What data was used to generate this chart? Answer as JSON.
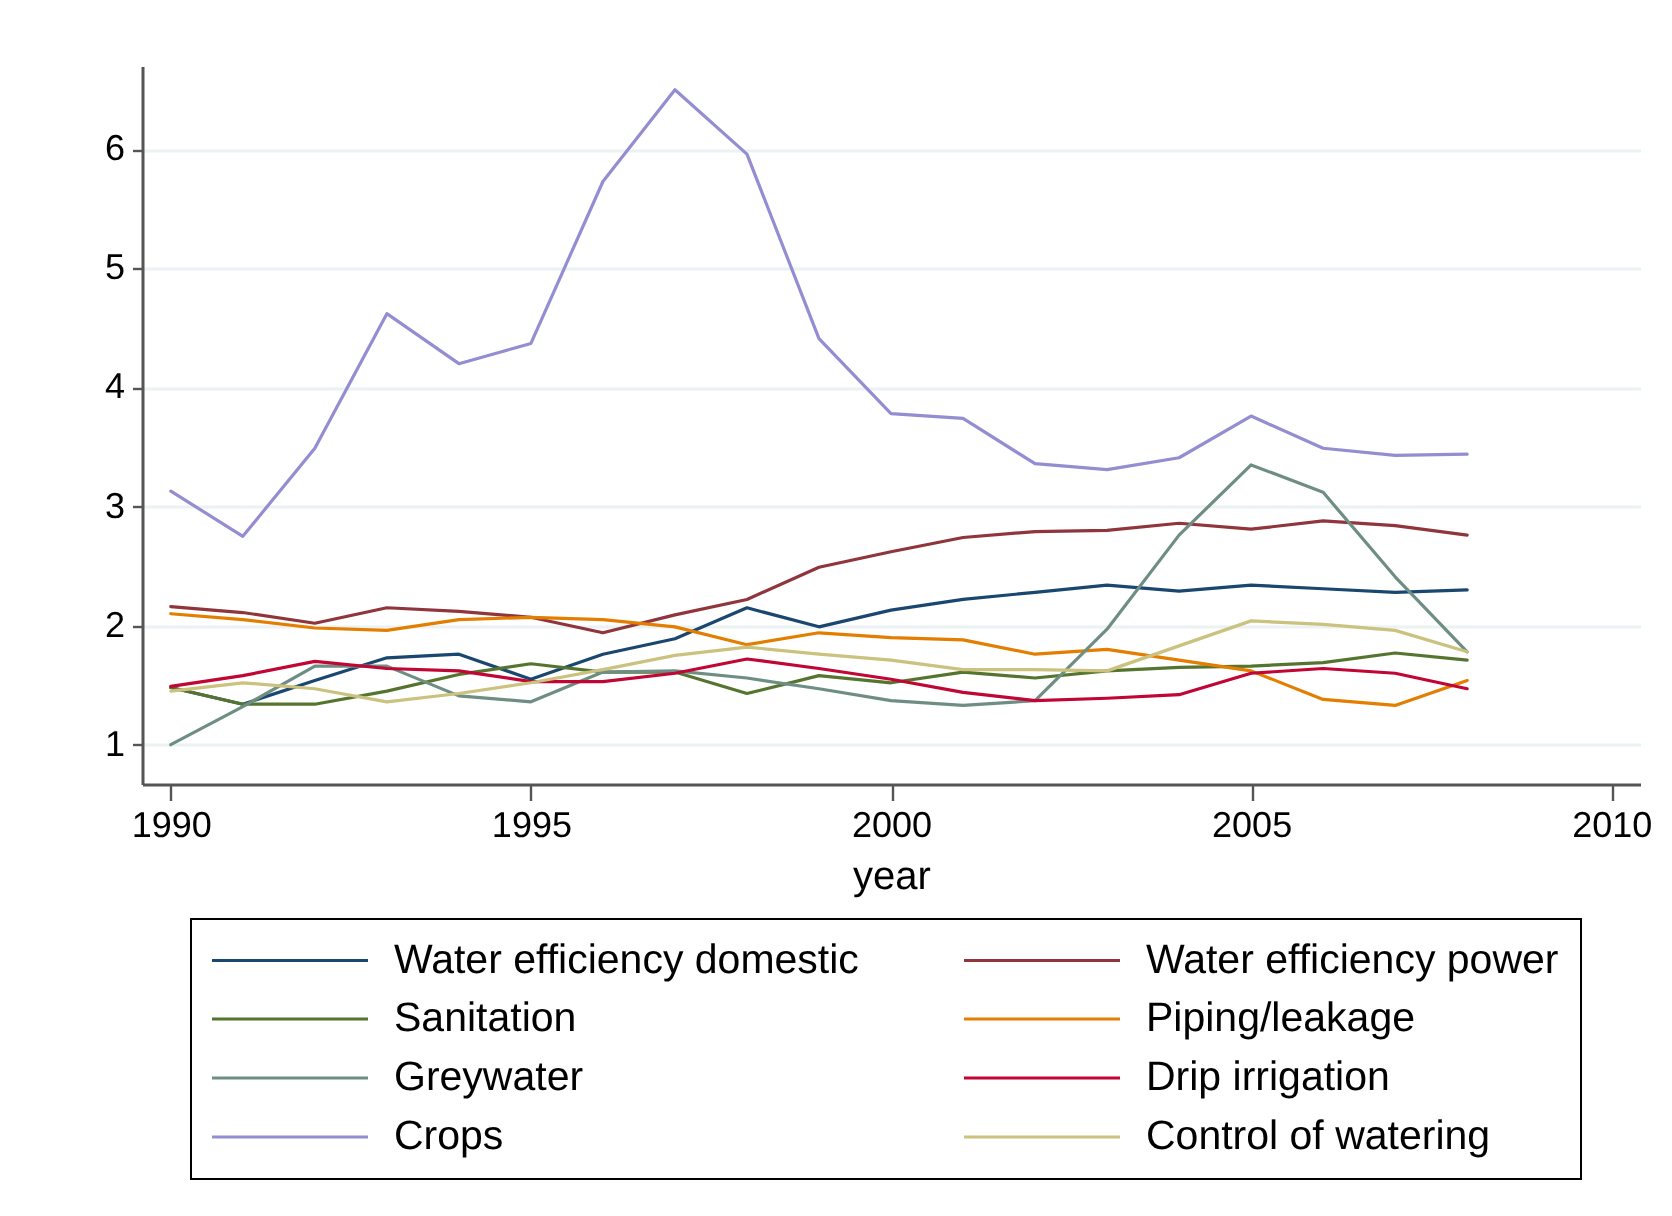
{
  "chart_data": {
    "type": "line",
    "xlabel": "year",
    "x": [
      1990,
      1991,
      1992,
      1993,
      1994,
      1995,
      1996,
      1997,
      1998,
      1999,
      2000,
      2001,
      2002,
      2003,
      2004,
      2005,
      2006,
      2007,
      2008
    ],
    "series": [
      {
        "name": "Water efficiency domestic",
        "color": "#1a476f",
        "values": [
          1.48,
          1.34,
          1.54,
          1.73,
          1.76,
          1.55,
          1.76,
          1.89,
          2.15,
          1.99,
          2.13,
          2.22,
          2.28,
          2.34,
          2.29,
          2.34,
          2.31,
          2.28,
          2.3
        ]
      },
      {
        "name": "Water efficiency power",
        "color": "#90353b",
        "values": [
          2.16,
          2.11,
          2.02,
          2.15,
          2.12,
          2.07,
          1.94,
          2.09,
          2.22,
          2.49,
          2.62,
          2.74,
          2.79,
          2.8,
          2.86,
          2.81,
          2.88,
          2.84,
          2.76
        ]
      },
      {
        "name": "Sanitation",
        "color": "#55752f",
        "values": [
          1.48,
          1.34,
          1.34,
          1.45,
          1.59,
          1.68,
          1.61,
          1.61,
          1.43,
          1.58,
          1.52,
          1.61,
          1.56,
          1.62,
          1.65,
          1.66,
          1.69,
          1.77,
          1.71
        ]
      },
      {
        "name": "Piping/leakage",
        "color": "#e37e00",
        "values": [
          2.1,
          2.05,
          1.98,
          1.96,
          2.05,
          2.07,
          2.05,
          1.99,
          1.84,
          1.94,
          1.9,
          1.88,
          1.76,
          1.8,
          1.71,
          1.62,
          1.38,
          1.33,
          1.54
        ]
      },
      {
        "name": "Greywater",
        "color": "#6e8e84",
        "values": [
          1.0,
          1.32,
          1.66,
          1.66,
          1.41,
          1.36,
          1.61,
          1.62,
          1.56,
          1.47,
          1.37,
          1.33,
          1.37,
          1.97,
          2.76,
          3.35,
          3.12,
          2.41,
          1.78
        ]
      },
      {
        "name": "Drip irrigation",
        "color": "#c10534",
        "values": [
          1.49,
          1.58,
          1.7,
          1.64,
          1.62,
          1.53,
          1.53,
          1.6,
          1.72,
          1.64,
          1.55,
          1.44,
          1.37,
          1.39,
          1.42,
          1.6,
          1.64,
          1.6,
          1.47
        ]
      },
      {
        "name": "Crops",
        "color": "#938dd2",
        "values": [
          3.13,
          2.75,
          3.49,
          4.62,
          4.2,
          4.37,
          5.73,
          6.5,
          5.96,
          4.41,
          3.78,
          3.74,
          3.36,
          3.31,
          3.41,
          3.76,
          3.49,
          3.43,
          3.44
        ]
      },
      {
        "name": "Control of watering",
        "color": "#cac27e",
        "values": [
          1.45,
          1.52,
          1.47,
          1.36,
          1.43,
          1.52,
          1.63,
          1.75,
          1.82,
          1.76,
          1.71,
          1.63,
          1.63,
          1.62,
          1.83,
          2.04,
          2.01,
          1.96,
          1.78
        ]
      }
    ],
    "xlim": [
      1989.6,
      2010.4
    ],
    "ylim": [
      0.67,
      6.7
    ],
    "xticks": [
      1990,
      1995,
      2000,
      2005,
      2010
    ],
    "yticks": [
      1,
      2,
      3,
      4,
      5,
      6
    ],
    "grid": "y",
    "legend": "bottom"
  }
}
